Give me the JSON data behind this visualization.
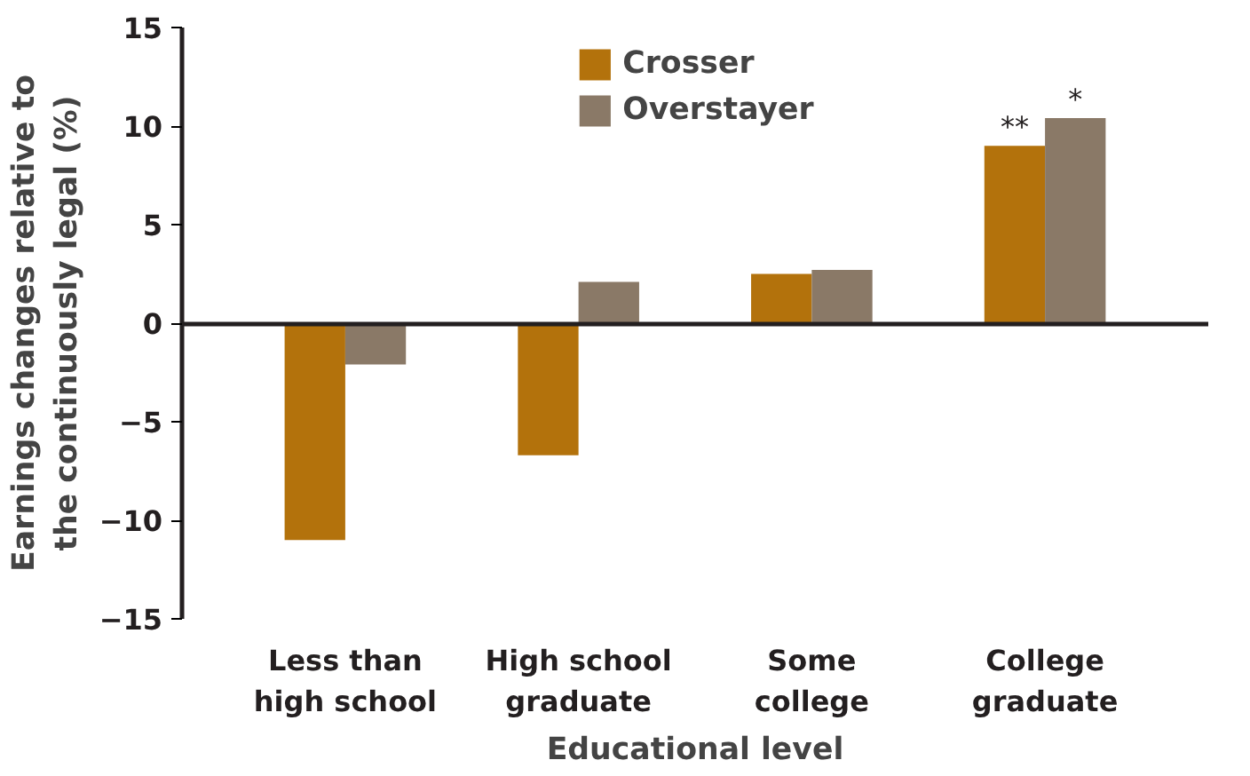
{
  "chart_data": {
    "type": "bar",
    "xlabel": "Educational level",
    "ylabel": "Earnings changes relative to\nthe continuously legal (%)",
    "categories": [
      "Less than\nhigh school",
      "High school\ngraduate",
      "Some\ncollege",
      "College\ngraduate"
    ],
    "series": [
      {
        "name": "Crosser",
        "color": "#b3720c",
        "values": [
          -11.0,
          -6.7,
          2.5,
          9.0
        ]
      },
      {
        "name": "Overstayer",
        "color": "#8a7967",
        "values": [
          -2.1,
          2.1,
          2.7,
          10.4
        ]
      }
    ],
    "ylim": [
      -15,
      15
    ],
    "yticks": [
      {
        "value": -15,
        "label": "−15"
      },
      {
        "value": -10,
        "label": "−10"
      },
      {
        "value": -5,
        "label": "−5"
      },
      0,
      5,
      10,
      15
    ],
    "annotations": [
      {
        "text": "**",
        "x": "College\ngraduate",
        "y": 9.0
      },
      {
        "text": "*",
        "x": "College\ngraduate",
        "y": 10.4
      }
    ],
    "legend": "top"
  }
}
